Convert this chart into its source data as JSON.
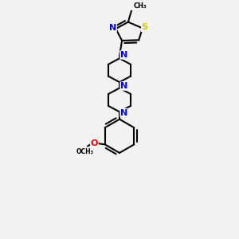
{
  "bg_color": "#f2f2f2",
  "bond_color": "#000000",
  "N_color": "#0000ee",
  "S_color": "#cccc00",
  "O_color": "#ee0000",
  "lw": 1.5,
  "fig_w": 3.0,
  "fig_h": 3.0,
  "dpi": 100,
  "xlim": [
    0.25,
    0.75
  ],
  "ylim": [
    0.02,
    0.98
  ]
}
